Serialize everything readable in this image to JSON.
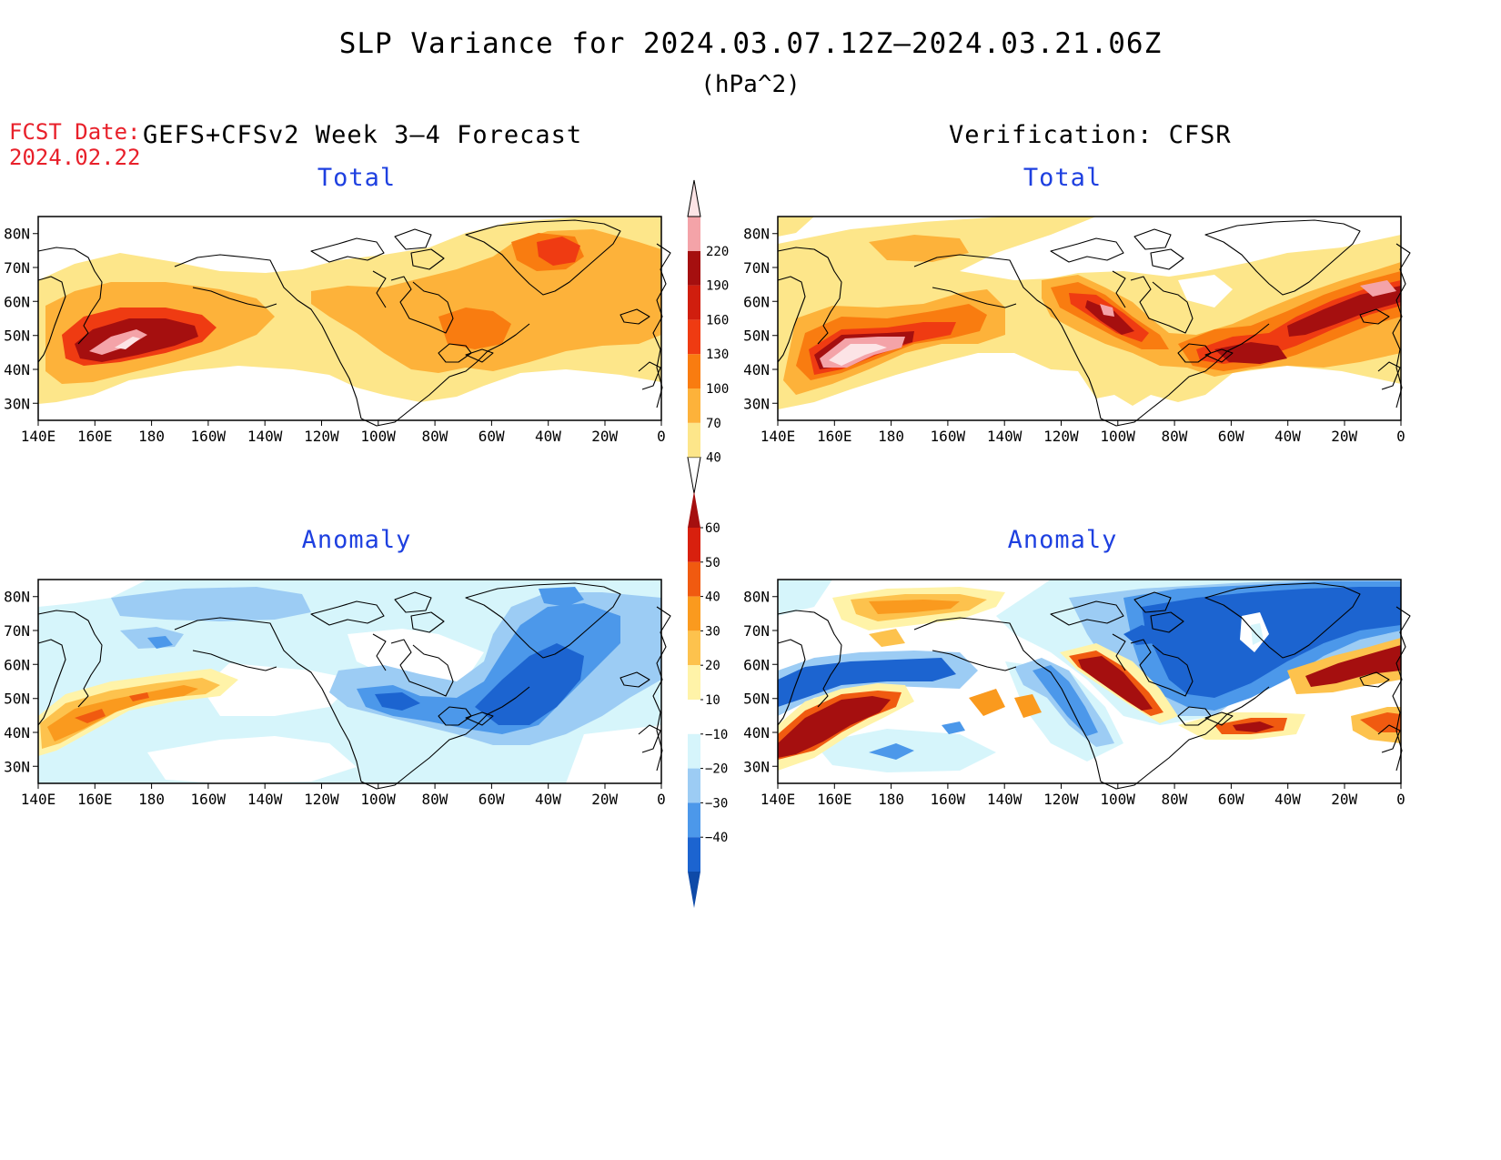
{
  "header": {
    "title": "SLP Variance for 2024.03.07.12Z–2024.03.21.06Z",
    "units": "(hPa^2)",
    "fcst_label": "FCST Date:",
    "fcst_date": "2024.02.22",
    "forecast_label": "GEFS+CFSv2 Week 3–4 Forecast",
    "verification_label": "Verification: CFSR"
  },
  "panels": {
    "fcst_total": {
      "title": "Total"
    },
    "ver_total": {
      "title": "Total"
    },
    "fcst_anom": {
      "title": "Anomaly"
    },
    "ver_anom": {
      "title": "Anomaly"
    }
  },
  "map_axes": {
    "lon_labels": [
      "140E",
      "160E",
      "180",
      "160W",
      "140W",
      "120W",
      "100W",
      "80W",
      "60W",
      "40W",
      "20W",
      "0"
    ],
    "lat_labels": [
      "80N",
      "70N",
      "60N",
      "50N",
      "40N",
      "30N"
    ],
    "lat_range": [
      25,
      85
    ],
    "lon_range": [
      "140E",
      "0"
    ]
  },
  "colorbars": {
    "total": {
      "labels": [
        "40",
        "70",
        "100",
        "130",
        "160",
        "190",
        "220"
      ],
      "colors": [
        "#fde68a",
        "#fdb23a",
        "#f97c10",
        "#ef3b12",
        "#d01e0e",
        "#a50f0f",
        "#f4a3a8",
        "#fce4e6"
      ]
    },
    "anomaly": {
      "labels": [
        "60",
        "50",
        "40",
        "30",
        "20",
        "10",
        "−10",
        "−20",
        "−30",
        "−40"
      ],
      "colors": [
        "#a50f0f",
        "#d8200e",
        "#f05a10",
        "#fa9a1e",
        "#fdc24d",
        "#fff3a8",
        "#ffffff",
        "#d6f5fb",
        "#9cccf4",
        "#4c98ea",
        "#1c64d0",
        "#0e4aa8"
      ]
    }
  }
}
